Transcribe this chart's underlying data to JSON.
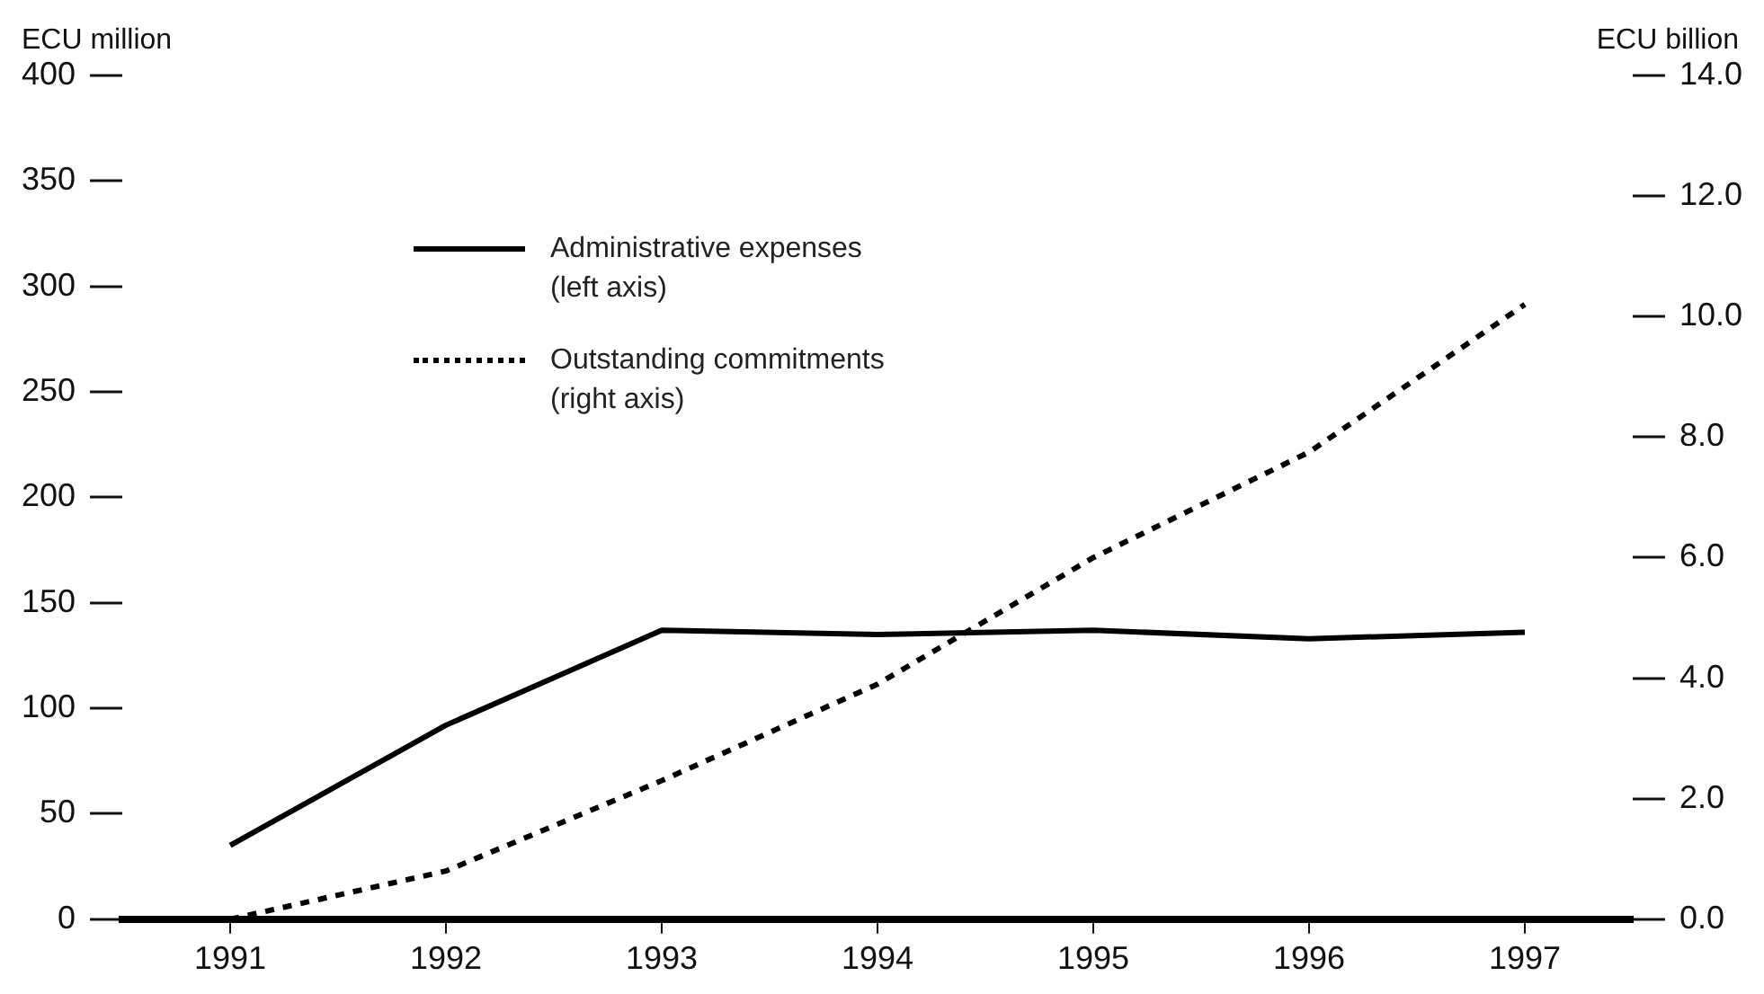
{
  "chart_data": {
    "type": "line",
    "xlabel": null,
    "ylabel": "ECU million",
    "y2label": "ECU billion",
    "categories": [
      "1991",
      "1992",
      "1993",
      "1994",
      "1995",
      "1996",
      "1997"
    ],
    "series": [
      {
        "name": "Administrative expenses (left axis)",
        "color": "#000000",
        "line_style": "solid",
        "values": [
          35,
          92,
          137,
          135,
          137,
          133,
          136
        ]
      },
      {
        "name": "Outstanding commitments (right axis)",
        "color": "#000000",
        "line_style": "dotted",
        "axis": "y2",
        "values": [
          0,
          0.8,
          2.3,
          3.9,
          6.0,
          7.75,
          10.2
        ]
      }
    ],
    "ylim": [
      0,
      400
    ],
    "yticks": [
      0,
      50,
      100,
      150,
      200,
      250,
      300,
      350,
      400
    ],
    "y2lim": [
      0,
      14
    ],
    "y2ticks": [
      {
        "value": 0,
        "label": "0.0"
      },
      {
        "value": 2,
        "label": "2.0"
      },
      {
        "value": 4,
        "label": "4.0"
      },
      {
        "value": 6,
        "label": "6.0"
      },
      {
        "value": 8,
        "label": "8.0"
      },
      {
        "value": 10,
        "label": "10.0"
      },
      {
        "value": 12,
        "label": "12.0"
      },
      {
        "value": 14,
        "label": "14.0"
      }
    ],
    "grid": false,
    "legend": "top",
    "marker": "none"
  }
}
